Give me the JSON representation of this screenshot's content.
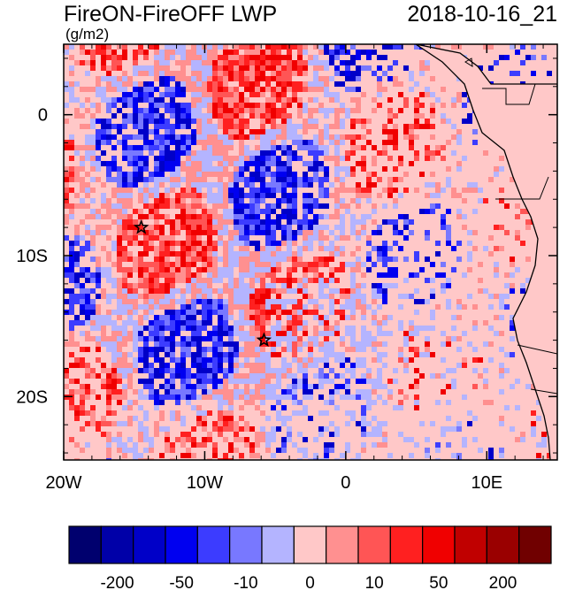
{
  "title": "FireON-FireOFF LWP",
  "datetime": "2018-10-16_21",
  "units": "(g/m2)",
  "x_ticks": [
    {
      "label": "20W",
      "lon": -20
    },
    {
      "label": "10W",
      "lon": -10
    },
    {
      "label": "0",
      "lon": 0
    },
    {
      "label": "10E",
      "lon": 10
    }
  ],
  "y_ticks": [
    {
      "label": "0",
      "lat": 0
    },
    {
      "label": "10S",
      "lat": -10
    },
    {
      "label": "20S",
      "lat": -20
    }
  ],
  "extent": {
    "lon_min": -20,
    "lon_max": 15,
    "lat_min": -24.5,
    "lat_max": 5
  },
  "colorbar": {
    "colors": [
      "#00006e",
      "#0000a8",
      "#0000c8",
      "#0000f0",
      "#3c3cff",
      "#7878ff",
      "#b4b4ff",
      "#ffc8c8",
      "#ff9090",
      "#ff5555",
      "#ff2020",
      "#f00000",
      "#c00000",
      "#9a0000",
      "#700000"
    ],
    "labels": [
      {
        "text": "-200",
        "boundary": 1
      },
      {
        "text": "-50",
        "boundary": 3
      },
      {
        "text": "-10",
        "boundary": 5
      },
      {
        "text": "0",
        "boundary": 7
      },
      {
        "text": "10",
        "boundary": 9
      },
      {
        "text": "50",
        "boundary": 11
      },
      {
        "text": "200",
        "boundary": 13
      }
    ]
  },
  "markers": [
    {
      "name": "star-north",
      "lon": -14.5,
      "lat": -8
    },
    {
      "name": "star-south",
      "lon": -5.8,
      "lat": -16
    }
  ]
}
